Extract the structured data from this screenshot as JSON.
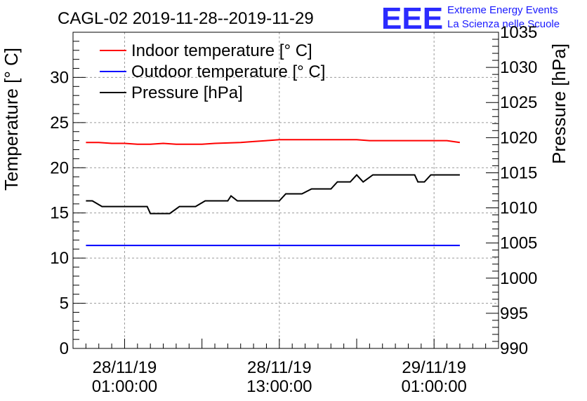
{
  "header": {
    "title": "CAGL-02 2019-11-28--2019-11-29",
    "logo_mark": "EEE",
    "logo_line1": "Extreme Energy Events",
    "logo_line2": "La Scienza nelle Scuole"
  },
  "chart_data": {
    "type": "line",
    "ylabel": "Temperature [° C]",
    "y2label": "Pressure [hPa]",
    "ylim": [
      0,
      35
    ],
    "y2lim": [
      990,
      1035
    ],
    "y_ticks": [
      0,
      5,
      10,
      15,
      20,
      25,
      30
    ],
    "y2_ticks": [
      990,
      995,
      1000,
      1005,
      1010,
      1015,
      1020,
      1025,
      1030,
      1035
    ],
    "x_range": [
      "2019-11-27 21:00",
      "2019-11-29 06:00"
    ],
    "x_ticks": [
      {
        "t": "2019-11-28 01:00",
        "line1": "28/11/19",
        "line2": "01:00:00"
      },
      {
        "t": "2019-11-28 13:00",
        "line1": "28/11/19",
        "line2": "13:00:00"
      },
      {
        "t": "2019-11-29 01:00",
        "line1": "29/11/19",
        "line2": "01:00:00"
      }
    ],
    "grid": true,
    "legend_position": "top-left",
    "series": [
      {
        "name": "Indoor temperature [° C]",
        "color": "#ff0000",
        "axis": "left",
        "points": [
          [
            "2019-11-27 22:00",
            22.8
          ],
          [
            "2019-11-27 23:00",
            22.8
          ],
          [
            "2019-11-28 00:00",
            22.7
          ],
          [
            "2019-11-28 01:00",
            22.7
          ],
          [
            "2019-11-28 02:00",
            22.6
          ],
          [
            "2019-11-28 03:00",
            22.6
          ],
          [
            "2019-11-28 04:00",
            22.7
          ],
          [
            "2019-11-28 05:00",
            22.6
          ],
          [
            "2019-11-28 06:00",
            22.6
          ],
          [
            "2019-11-28 07:00",
            22.6
          ],
          [
            "2019-11-28 08:00",
            22.7
          ],
          [
            "2019-11-28 10:00",
            22.8
          ],
          [
            "2019-11-28 11:00",
            22.9
          ],
          [
            "2019-11-28 12:00",
            23.0
          ],
          [
            "2019-11-28 13:00",
            23.1
          ],
          [
            "2019-11-28 16:00",
            23.1
          ],
          [
            "2019-11-28 19:00",
            23.1
          ],
          [
            "2019-11-28 20:00",
            23.0
          ],
          [
            "2019-11-28 23:00",
            23.0
          ],
          [
            "2019-11-29 01:00",
            23.0
          ],
          [
            "2019-11-29 02:00",
            23.0
          ],
          [
            "2019-11-29 03:00",
            22.8
          ]
        ]
      },
      {
        "name": "Outdoor temperature [° C]",
        "color": "#0000ff",
        "axis": "left",
        "points": [
          [
            "2019-11-27 22:00",
            11.4
          ],
          [
            "2019-11-29 03:00",
            11.4
          ]
        ]
      },
      {
        "name": "Pressure [hPa]",
        "color": "#000000",
        "axis": "right",
        "points": [
          [
            "2019-11-27 22:00",
            1011.0
          ],
          [
            "2019-11-27 22:30",
            1011.0
          ],
          [
            "2019-11-27 23:15",
            1010.2
          ],
          [
            "2019-11-28 00:30",
            1010.2
          ],
          [
            "2019-11-28 02:00",
            1010.2
          ],
          [
            "2019-11-28 02:45",
            1010.2
          ],
          [
            "2019-11-28 03:00",
            1009.2
          ],
          [
            "2019-11-28 04:30",
            1009.2
          ],
          [
            "2019-11-28 05:15",
            1010.2
          ],
          [
            "2019-11-28 06:30",
            1010.2
          ],
          [
            "2019-11-28 07:15",
            1011.0
          ],
          [
            "2019-11-28 09:00",
            1011.0
          ],
          [
            "2019-11-28 09:15",
            1011.7
          ],
          [
            "2019-11-28 09:45",
            1011.0
          ],
          [
            "2019-11-28 13:00",
            1011.0
          ],
          [
            "2019-11-28 13:30",
            1012.0
          ],
          [
            "2019-11-28 14:45",
            1012.0
          ],
          [
            "2019-11-28 15:30",
            1012.7
          ],
          [
            "2019-11-28 17:00",
            1012.7
          ],
          [
            "2019-11-28 17:30",
            1013.7
          ],
          [
            "2019-11-28 18:30",
            1013.7
          ],
          [
            "2019-11-28 19:00",
            1014.7
          ],
          [
            "2019-11-28 19:30",
            1013.7
          ],
          [
            "2019-11-28 20:15",
            1014.7
          ],
          [
            "2019-11-28 22:15",
            1014.7
          ],
          [
            "2019-11-28 23:30",
            1014.7
          ],
          [
            "2019-11-28 23:45",
            1013.7
          ],
          [
            "2019-11-29 00:15",
            1013.7
          ],
          [
            "2019-11-29 00:45",
            1014.7
          ],
          [
            "2019-11-29 03:00",
            1014.7
          ]
        ]
      }
    ]
  }
}
